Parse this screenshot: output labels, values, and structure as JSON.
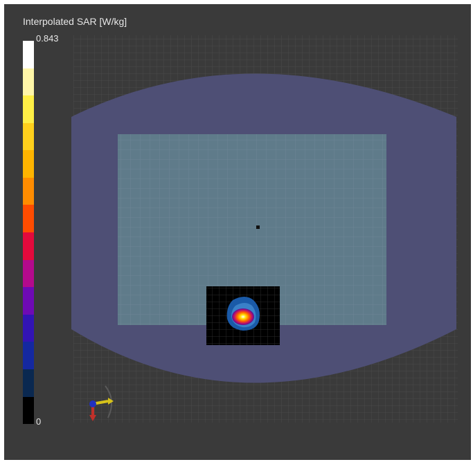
{
  "legend": {
    "title": "Interpolated SAR [W/kg]",
    "max_label": "0.843",
    "min_label": "0",
    "colors": [
      "#ffffff",
      "#fff6a8",
      "#ffef46",
      "#ffd01c",
      "#ffb400",
      "#ff8c00",
      "#ff4c00",
      "#e30a3c",
      "#b40a8c",
      "#6e0ab4",
      "#3214b4",
      "#1428a0",
      "#0a2850",
      "#000000"
    ]
  },
  "scene": {
    "background": "#3a3a3a",
    "phantom_color": "#4e4f75",
    "substrate_color": "#5f7b8a",
    "probe_area_color": "#000000",
    "hotspot_colors": [
      "#1a5aa8",
      "#3a80c8",
      "#7a10a0",
      "#ff5000",
      "#ffd000",
      "#ffffff"
    ]
  },
  "axes_gizmo": {
    "icon": "xyz-axes-icon"
  }
}
